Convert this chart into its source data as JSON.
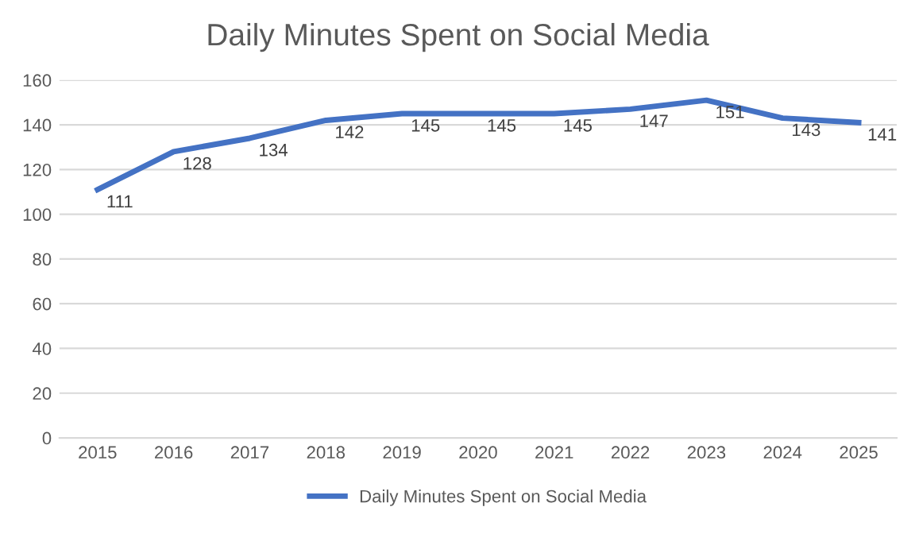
{
  "chart_data": {
    "type": "line",
    "title": "Daily Minutes Spent on Social Media",
    "categories": [
      "2015",
      "2016",
      "2017",
      "2018",
      "2019",
      "2020",
      "2021",
      "2022",
      "2023",
      "2024",
      "2025"
    ],
    "series": [
      {
        "name": "Daily Minutes Spent on Social Media",
        "color": "#4472c4",
        "values": [
          111,
          128,
          134,
          142,
          145,
          145,
          145,
          147,
          151,
          143,
          141
        ]
      }
    ],
    "ylim": [
      0,
      160
    ],
    "yticks": [
      0,
      20,
      40,
      60,
      80,
      100,
      120,
      140,
      160
    ],
    "grid": "y",
    "legend": "bottom",
    "data_labels": true,
    "marker": "none",
    "line_style": "solid"
  }
}
